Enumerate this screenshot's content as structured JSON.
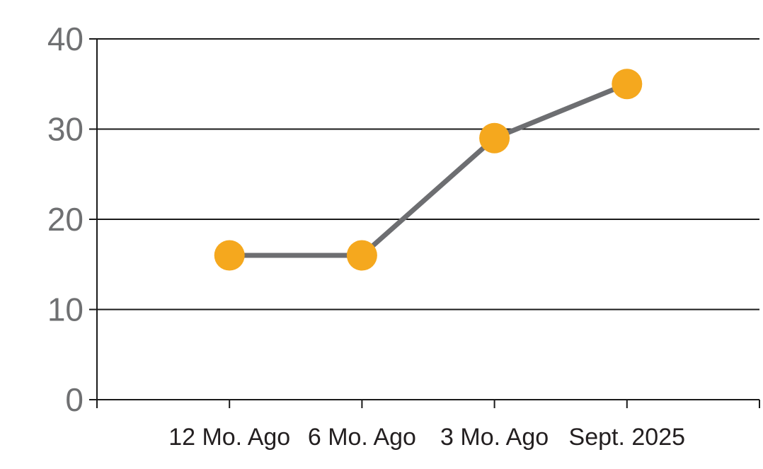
{
  "chart_data": {
    "type": "line",
    "categories": [
      "12 Mo. Ago",
      "6 Mo. Ago",
      "3 Mo. Ago",
      "Sept. 2025"
    ],
    "values": [
      16,
      16,
      29,
      35
    ],
    "title": "",
    "xlabel": "",
    "ylabel": "",
    "ylim": [
      0,
      40
    ],
    "yticks": [
      0,
      10,
      20,
      30,
      40
    ],
    "grid": true,
    "legend": false,
    "colors": {
      "marker": "#F5A81E",
      "line": "#6D6E71",
      "y_tick_label": "#6F7072",
      "x_tick_label": "#231F20",
      "grid_line": "#1A1A1A",
      "background": "#FFFFFF"
    }
  }
}
